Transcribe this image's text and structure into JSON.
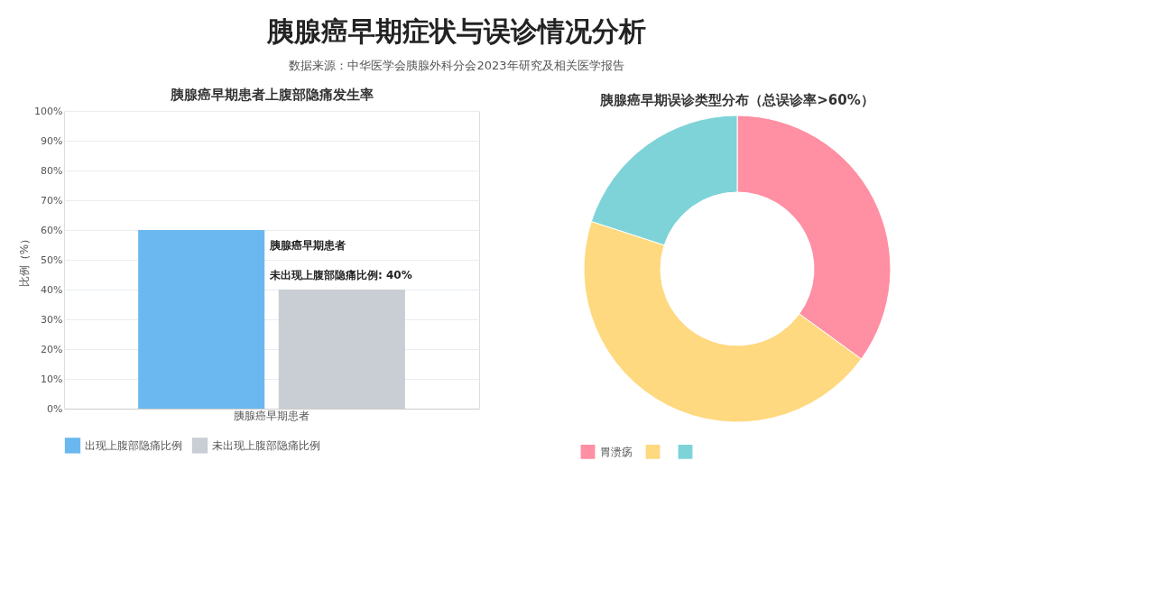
{
  "chart_data": [
    {
      "type": "other",
      "title": "胰腺癌早期症状与误诊情况分析",
      "subtitle": "数据来源：中华医学会胰腺外科分会2023年研究及相关医学报告"
    },
    {
      "type": "bar",
      "title": "胰腺癌早期患者上腹部隐痛发生率",
      "categories": [
        "胰腺癌早期患者"
      ],
      "series": [
        {
          "name": "出现上腹部隐痛比例",
          "color": "#6ab8ef",
          "values": [
            60
          ]
        },
        {
          "name": "未出现上腹部隐痛比例",
          "color": "#c9cdd4",
          "values": [
            40
          ]
        }
      ],
      "ylabel": "比例（%）",
      "ylim": [
        0,
        100
      ],
      "yticks": [
        {
          "value": 0,
          "label": "0%"
        },
        {
          "value": 10,
          "label": "10%"
        },
        {
          "value": 20,
          "label": "20%"
        },
        {
          "value": 30,
          "label": "30%"
        },
        {
          "value": 40,
          "label": "40%"
        },
        {
          "value": 50,
          "label": "50%"
        },
        {
          "value": 60,
          "label": "60%"
        },
        {
          "value": 70,
          "label": "70%"
        },
        {
          "value": 80,
          "label": "80%"
        },
        {
          "value": 90,
          "label": "90%"
        },
        {
          "value": 100,
          "label": "100%"
        }
      ],
      "grid": "y",
      "legend": "bottom",
      "annotations": [
        "胰腺癌早期患者",
        "未出现上腹部隐痛比例: 40%"
      ]
    },
    {
      "type": "donut",
      "title": "胰腺癌早期误诊类型分布（总误诊率>60%）",
      "categories": [
        "胃溃疡",
        null,
        null
      ],
      "values": [
        35,
        45,
        20
      ],
      "colors": [
        "#ff8fa3",
        "#ffd97f",
        "#7dd3d8"
      ],
      "legend": "bottom"
    }
  ]
}
